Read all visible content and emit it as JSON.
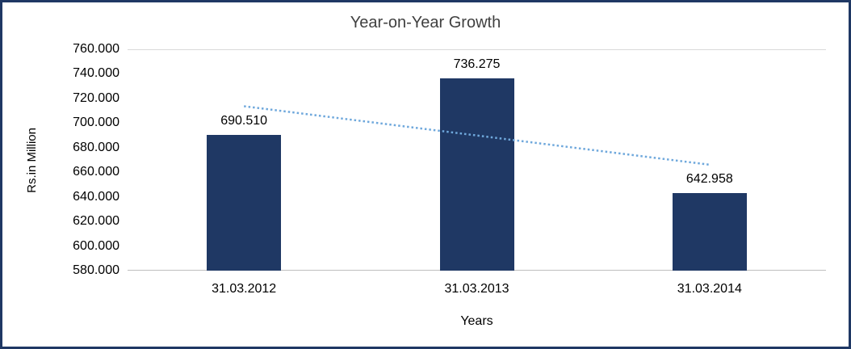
{
  "chart_data": {
    "type": "bar",
    "title": "Year-on-Year Growth",
    "xlabel": "Years",
    "ylabel": "Rs.in Million",
    "categories": [
      "31.03.2012",
      "31.03.2013",
      "31.03.2014"
    ],
    "values": [
      690.51,
      736.275,
      642.958
    ],
    "value_labels": [
      "690.510",
      "736.275",
      "642.958"
    ],
    "ylim": [
      580,
      760
    ],
    "ytick_step": 20,
    "ytick_labels": [
      "580.000",
      "600.000",
      "620.000",
      "640.000",
      "660.000",
      "680.000",
      "700.000",
      "720.000",
      "740.000",
      "760.000"
    ],
    "grid": "top-line-only",
    "legend": "none",
    "bar_color": "#1F3864",
    "trendline": {
      "type": "linear",
      "style": "dotted",
      "color": "#6FA8DC"
    },
    "frame_border_color": "#1F3864",
    "axis_line_color": "#BFBFBF",
    "gridline_color": "#D9D9D9",
    "title_color": "#404040",
    "text_color": "#000000"
  }
}
